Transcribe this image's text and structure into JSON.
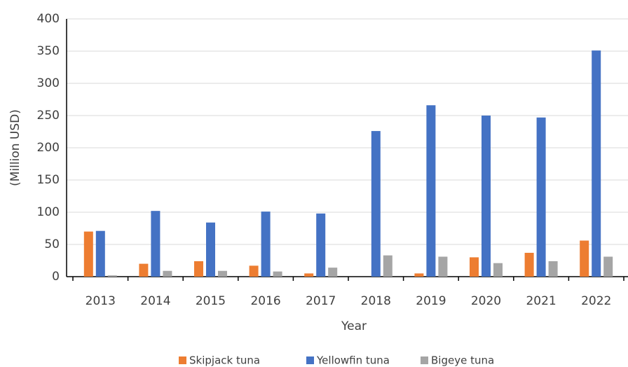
{
  "chart_data": {
    "type": "bar",
    "categories": [
      "2013",
      "2014",
      "2015",
      "2016",
      "2017",
      "2018",
      "2019",
      "2020",
      "2021",
      "2022"
    ],
    "series": [
      {
        "name": "Skipjack tuna",
        "color": "#ed7d31",
        "values": [
          70,
          20,
          24,
          17,
          5,
          0,
          5,
          30,
          37,
          56
        ]
      },
      {
        "name": "Yellowfin tuna",
        "color": "#4472c4",
        "values": [
          71,
          102,
          84,
          101,
          98,
          226,
          266,
          250,
          247,
          351
        ]
      },
      {
        "name": "Bigeye tuna",
        "color": "#a5a5a5",
        "values": [
          2,
          9,
          9,
          8,
          14,
          33,
          31,
          21,
          24,
          31
        ]
      }
    ],
    "xlabel": "Year",
    "ylabel": "(Million USD)",
    "ylim": [
      0,
      400
    ],
    "yticks": [
      0,
      50,
      100,
      150,
      200,
      250,
      300,
      350,
      400
    ],
    "grid": true,
    "legend": "bottom"
  }
}
